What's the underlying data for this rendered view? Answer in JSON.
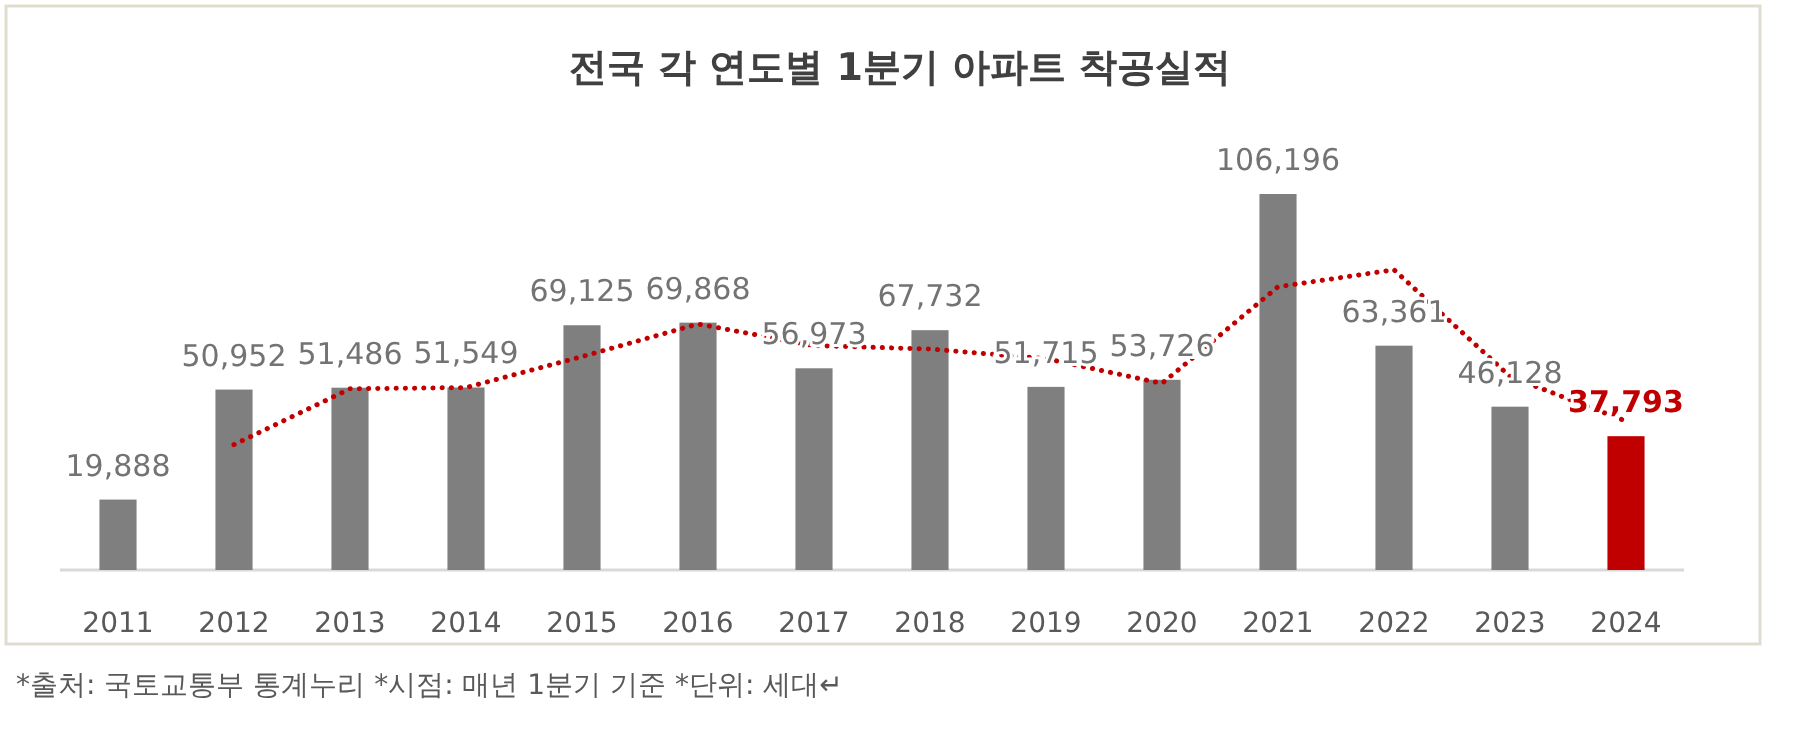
{
  "chart_data": {
    "type": "bar",
    "title": "전국 각 연도별 1분기 아파트 착공실적",
    "categories": [
      "2011",
      "2012",
      "2013",
      "2014",
      "2015",
      "2016",
      "2017",
      "2018",
      "2019",
      "2020",
      "2021",
      "2022",
      "2023",
      "2024"
    ],
    "series": [
      {
        "type": "bar",
        "colors": [
          "#7f7f7f",
          "#7f7f7f",
          "#7f7f7f",
          "#7f7f7f",
          "#7f7f7f",
          "#7f7f7f",
          "#7f7f7f",
          "#7f7f7f",
          "#7f7f7f",
          "#7f7f7f",
          "#7f7f7f",
          "#7f7f7f",
          "#7f7f7f",
          "#c00000"
        ],
        "values": [
          19888,
          50952,
          51486,
          51549,
          69125,
          69868,
          56973,
          67732,
          51715,
          53726,
          106196,
          63361,
          46128,
          37793
        ],
        "value_labels": [
          "19,888",
          "50,952",
          "51,486",
          "51,549",
          "69,125",
          "69,868",
          "56,973",
          "67,732",
          "51,715",
          "53,726",
          "106,196",
          "63,361",
          "46,128",
          "37,793"
        ]
      },
      {
        "type": "line",
        "color": "#c00000",
        "line_style": "dotted",
        "values": [
          null,
          35400,
          51200,
          51500,
          60300,
          69500,
          63400,
          62400,
          59700,
          52700,
          80000,
          84800,
          54700,
          42000
        ]
      }
    ],
    "annotations": [
      "*출처: 국토교통부 통계누리 *시점: 매년 1분기 기준 *단위: 세대↵"
    ]
  }
}
